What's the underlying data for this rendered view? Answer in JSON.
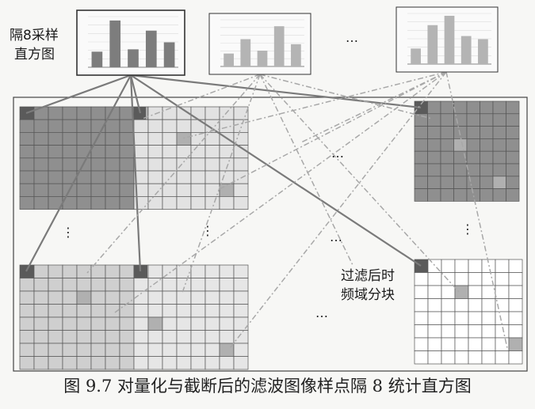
{
  "labels": {
    "histogram_label_line1": "隔8采样",
    "histogram_label_line2": "直方图",
    "blocks_label_line1": "过滤后时",
    "blocks_label_line2": "频域分块",
    "ellipsis": "…",
    "vertical_ellipsis": "⋮"
  },
  "caption": "图 9.7   对量化与截断后的滤波图像样点隔 8 统计直方图",
  "histograms": [
    {
      "name": "histogram-1",
      "values": [
        2,
        6,
        2.3,
        4.7,
        3.2
      ],
      "style": "dark"
    },
    {
      "name": "histogram-2",
      "values": [
        1.8,
        3.8,
        2.2,
        5.6,
        3.1
      ],
      "style": "light"
    },
    {
      "name": "histogram-n",
      "values": [
        2,
        5,
        6.2,
        3.6,
        3.2
      ],
      "style": "light"
    }
  ],
  "colors": {
    "line": "#7a7a7a",
    "dash": "#a8a8a8",
    "grid_light": "#555555",
    "cell_dark": "#8f8f8f",
    "cell_mid": "#c8c8c8",
    "cell_light": "#ffffff",
    "corner": "#5a5a5a",
    "bar_dark": "#7d7d7d",
    "bar_light": "#b4b4b4"
  }
}
